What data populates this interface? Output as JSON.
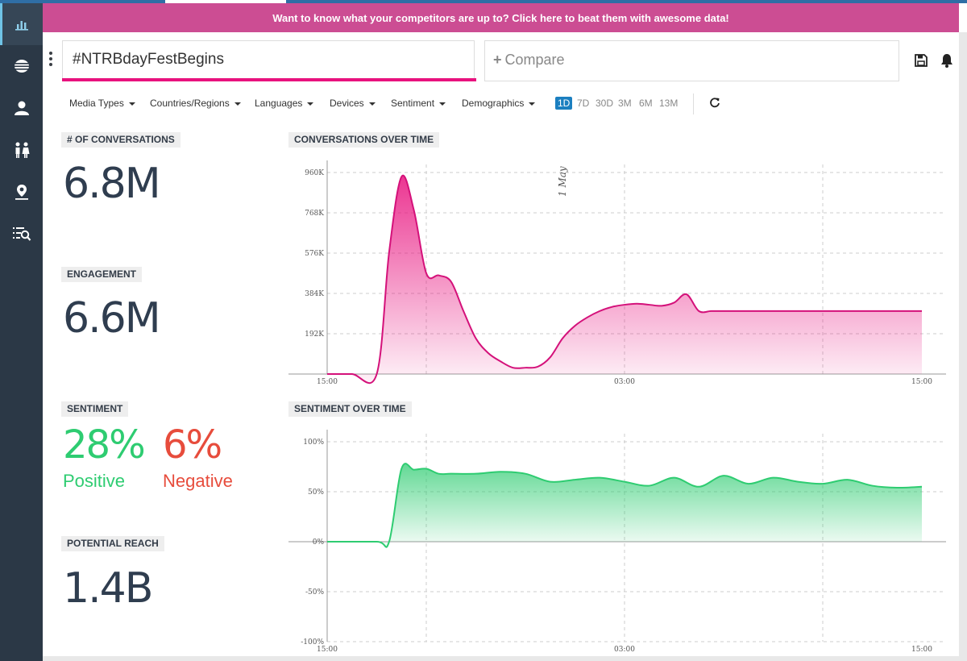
{
  "banner": {
    "text": "Want to know what your competitors are up to? Click here to beat them with awesome data!"
  },
  "sidebar": {
    "items": [
      {
        "icon": "bar-chart-icon",
        "active": true
      },
      {
        "icon": "topics-icon"
      },
      {
        "icon": "user-icon"
      },
      {
        "icon": "demographics-icon"
      },
      {
        "icon": "location-icon"
      },
      {
        "icon": "search-list-icon"
      }
    ]
  },
  "search": {
    "value": "#NTRBdayFestBegins"
  },
  "compare": {
    "label": "Compare"
  },
  "toolbar": {
    "save_icon": "save-icon",
    "bell_icon": "bell-icon",
    "refresh_icon": "refresh-icon"
  },
  "filters": [
    {
      "label": "Media Types"
    },
    {
      "label": "Countries/Regions"
    },
    {
      "label": "Languages"
    },
    {
      "label": "Devices"
    },
    {
      "label": "Sentiment"
    },
    {
      "label": "Demographics"
    }
  ],
  "ranges": [
    {
      "label": "1D",
      "active": true
    },
    {
      "label": "7D"
    },
    {
      "label": "30D"
    },
    {
      "label": "3M"
    },
    {
      "label": "6M"
    },
    {
      "label": "13M"
    }
  ],
  "metrics": {
    "conversations": {
      "label": "# OF CONVERSATIONS",
      "value": "6.8M"
    },
    "engagement": {
      "label": "ENGAGEMENT",
      "value": "6.6M"
    },
    "sentiment": {
      "label": "SENTIMENT",
      "positive_value": "28%",
      "positive_label": "Positive",
      "negative_value": "6%",
      "negative_label": "Negative"
    },
    "reach": {
      "label": "POTENTIAL REACH",
      "value": "1.4B"
    }
  },
  "colors": {
    "accent": "#e8127e",
    "positive": "#2ecc71",
    "negative": "#e74c3c",
    "banner": "#cc4d93",
    "sidebar": "#2b3846"
  },
  "chart_data": [
    {
      "type": "area",
      "title": "CONVERSATIONS OVER TIME",
      "x_tick_labels": [
        "15:00",
        "03:00",
        "15:00"
      ],
      "y_tick_labels": [
        "192K",
        "384K",
        "576K",
        "768K",
        "960K"
      ],
      "annotation": "1 May",
      "ylim": [
        0,
        960000
      ],
      "x": [
        0,
        1,
        2,
        2.5,
        3,
        3.5,
        4,
        4.5,
        5,
        5.5,
        6,
        6.5,
        7,
        7.5,
        8,
        8.5,
        9,
        9.5,
        10,
        10.5,
        11,
        11.5,
        12,
        12.5,
        13,
        13.5,
        14,
        14.5,
        15,
        15.5,
        16,
        16.5,
        17,
        17.5,
        18,
        18.5,
        19,
        19.5,
        20,
        20.5,
        21,
        21.5,
        22,
        22.5,
        23,
        23.5,
        24
      ],
      "values": [
        0,
        0,
        0,
        580000,
        940000,
        780000,
        480000,
        470000,
        440000,
        300000,
        170000,
        100000,
        60000,
        30000,
        30000,
        35000,
        80000,
        170000,
        230000,
        270000,
        300000,
        320000,
        330000,
        335000,
        330000,
        325000,
        340000,
        380000,
        300000,
        300000,
        300000,
        300000,
        300000,
        300000,
        300000,
        300000,
        300000,
        300000,
        300000,
        300000,
        300000,
        300000,
        300000,
        300000,
        300000,
        300000,
        300000
      ]
    },
    {
      "type": "area",
      "title": "SENTIMENT OVER TIME",
      "x_tick_labels": [
        "15:00",
        "03:00",
        "15:00"
      ],
      "y_tick_labels": [
        "100%",
        "50%",
        "0%",
        "-50%",
        "-100%"
      ],
      "ylim": [
        -100,
        100
      ],
      "x": [
        0,
        2,
        2.5,
        3,
        3.5,
        4,
        4.5,
        5,
        6,
        7,
        8,
        9,
        10,
        11,
        12,
        13,
        14,
        15,
        16,
        17,
        18,
        19,
        20,
        21,
        22,
        23,
        24
      ],
      "values": [
        0,
        0,
        0,
        73,
        72,
        73,
        68,
        68,
        68,
        70,
        68,
        60,
        62,
        64,
        60,
        56,
        64,
        55,
        66,
        58,
        64,
        60,
        58,
        62,
        56,
        54,
        55
      ]
    }
  ]
}
